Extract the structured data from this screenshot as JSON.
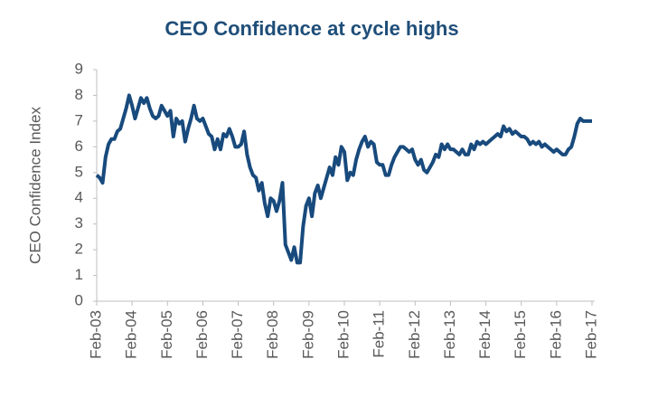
{
  "chart_data": {
    "type": "line",
    "title": "CEO Confidence at cycle highs",
    "y_label": "CEO Confidence Index",
    "categories": [
      "Feb-03",
      null,
      null,
      null,
      null,
      null,
      null,
      null,
      null,
      null,
      null,
      null,
      "Feb-04",
      null,
      null,
      null,
      null,
      null,
      null,
      null,
      null,
      null,
      null,
      null,
      "Feb-05",
      null,
      null,
      null,
      null,
      null,
      null,
      null,
      null,
      null,
      null,
      null,
      "Feb-06",
      null,
      null,
      null,
      null,
      null,
      null,
      null,
      null,
      null,
      null,
      null,
      "Feb-07",
      null,
      null,
      null,
      null,
      null,
      null,
      null,
      null,
      null,
      null,
      null,
      "Feb-08",
      null,
      null,
      null,
      null,
      null,
      null,
      null,
      null,
      null,
      null,
      null,
      "Feb-09",
      null,
      null,
      null,
      null,
      null,
      null,
      null,
      null,
      null,
      null,
      null,
      "Feb-10",
      null,
      null,
      null,
      null,
      null,
      null,
      null,
      null,
      null,
      null,
      null,
      "Feb-11",
      null,
      null,
      null,
      null,
      null,
      null,
      null,
      null,
      null,
      null,
      null,
      "Feb-12",
      null,
      null,
      null,
      null,
      null,
      null,
      null,
      null,
      null,
      null,
      null,
      "Feb-13",
      null,
      null,
      null,
      null,
      null,
      null,
      null,
      null,
      null,
      null,
      null,
      "Feb-14",
      null,
      null,
      null,
      null,
      null,
      null,
      null,
      null,
      null,
      null,
      null,
      "Feb-15",
      null,
      null,
      null,
      null,
      null,
      null,
      null,
      null,
      null,
      null,
      null,
      "Feb-16",
      null,
      null,
      null,
      null,
      null,
      null,
      null,
      null,
      null,
      null,
      null,
      "Feb-17"
    ],
    "values": [
      4.9,
      4.8,
      4.6,
      5.6,
      6.1,
      6.3,
      6.3,
      6.6,
      6.7,
      7.1,
      7.5,
      8.0,
      7.6,
      7.1,
      7.5,
      7.9,
      7.7,
      7.9,
      7.5,
      7.2,
      7.1,
      7.2,
      7.6,
      7.4,
      7.2,
      7.4,
      6.4,
      7.1,
      6.9,
      7.0,
      6.2,
      6.7,
      7.1,
      7.6,
      7.1,
      7.0,
      7.1,
      6.8,
      6.5,
      6.4,
      5.9,
      6.3,
      5.9,
      6.5,
      6.4,
      6.7,
      6.4,
      6.0,
      6.0,
      6.1,
      6.6,
      5.7,
      5.2,
      4.9,
      4.8,
      4.3,
      4.6,
      3.8,
      3.3,
      4.0,
      3.9,
      3.5,
      3.9,
      4.6,
      2.2,
      1.9,
      1.6,
      2.1,
      1.5,
      1.5,
      2.9,
      3.7,
      4.0,
      3.3,
      4.2,
      4.5,
      4.0,
      4.4,
      4.8,
      5.2,
      4.9,
      5.6,
      5.3,
      6.0,
      5.8,
      4.7,
      5.0,
      4.9,
      5.5,
      5.9,
      6.2,
      6.4,
      6.0,
      6.2,
      6.1,
      5.4,
      5.3,
      5.3,
      4.9,
      4.9,
      5.3,
      5.6,
      5.8,
      6.0,
      6.0,
      5.9,
      5.8,
      5.9,
      5.5,
      5.3,
      5.5,
      5.1,
      5.0,
      5.2,
      5.4,
      5.7,
      5.6,
      6.1,
      5.9,
      6.1,
      5.9,
      5.9,
      5.8,
      5.7,
      5.9,
      5.7,
      5.7,
      6.1,
      5.9,
      6.2,
      6.1,
      6.2,
      6.1,
      6.2,
      6.3,
      6.4,
      6.5,
      6.4,
      6.8,
      6.6,
      6.7,
      6.5,
      6.6,
      6.5,
      6.4,
      6.4,
      6.3,
      6.1,
      6.2,
      6.1,
      6.2,
      6.0,
      6.1,
      6.0,
      5.9,
      5.8,
      5.9,
      5.8,
      5.7,
      5.7,
      5.9,
      6.0,
      6.4,
      6.9,
      7.1,
      7.0,
      7.0,
      7.0,
      7.0
    ],
    "color": "#184a7d",
    "title_color": "#1f4e79",
    "ylim": [
      0,
      9
    ],
    "yticks": [
      0,
      1,
      2,
      3,
      4,
      5,
      6,
      7,
      8,
      9
    ],
    "grid": false
  }
}
